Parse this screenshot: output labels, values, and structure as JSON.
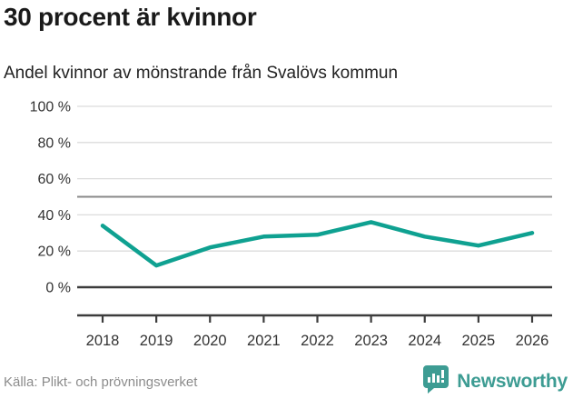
{
  "title": "30 procent är kvinnor",
  "subtitle": "Andel kvinnor av mönstrande från Svalövs kommun",
  "footer": {
    "source": "Källa: Plikt- och prövningsverket",
    "brand": "Newsworthy",
    "brand_icon": "bar-chart-speech-bubble-icon"
  },
  "colors": {
    "line": "#0fa191",
    "grid": "#dcdcdc",
    "ref_line": "#8a8a8a",
    "zero_line": "#3c3c3c",
    "axis": "#3c3c3c",
    "tick_text": "#333333",
    "source_text": "#8c8c8c",
    "brand": "#3d9c93"
  },
  "chart_data": {
    "type": "line",
    "title": "30 procent är kvinnor",
    "subtitle": "Andel kvinnor av mönstrande från Svalövs kommun",
    "categories": [
      "2018",
      "2019",
      "2020",
      "2021",
      "2022",
      "2023",
      "2024",
      "2025",
      "2026"
    ],
    "series": [
      {
        "name": "Andel kvinnor av mönstrande",
        "values": [
          34,
          12,
          22,
          28,
          29,
          36,
          28,
          23,
          30
        ]
      }
    ],
    "unit": "%",
    "ylim": [
      0,
      100
    ],
    "yticks": [
      0,
      20,
      40,
      60,
      80,
      100
    ],
    "ytick_format": "{v} %",
    "reference_line": 50,
    "grid": true,
    "legend": false,
    "xlabel": "",
    "ylabel": ""
  }
}
